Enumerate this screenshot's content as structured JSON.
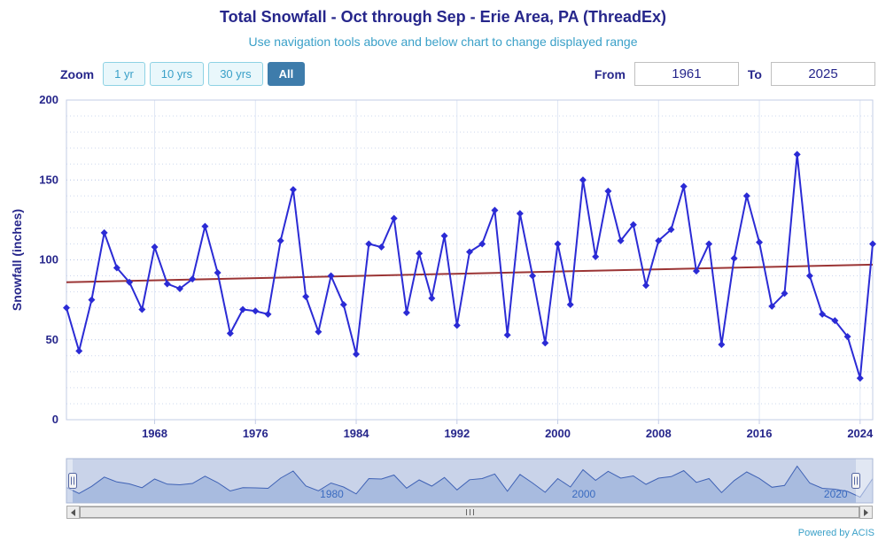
{
  "chart_data": {
    "type": "line",
    "title": "Total Snowfall - Oct through Sep - Erie Area, PA (ThreadEx)",
    "subtitle": "Use navigation tools above and below chart to change displayed range",
    "xlabel": "",
    "ylabel": "Snowfall (inches)",
    "xlim": [
      1961,
      2025
    ],
    "ylim": [
      0,
      200
    ],
    "x_ticks": [
      1968,
      1976,
      1984,
      1992,
      2000,
      2008,
      2016,
      2024
    ],
    "y_ticks": [
      0,
      50,
      100,
      150,
      200
    ],
    "minor_grid_step": 10,
    "grid": true,
    "legend": "none",
    "x_start": 1961,
    "x_end": 2025,
    "series": [
      {
        "name": "Seasonal total snowfall",
        "type": "line",
        "marker": "diamond",
        "color": "#2b2bd5",
        "values": [
          70,
          43,
          75,
          117,
          95,
          86,
          69,
          108,
          85,
          82,
          88,
          121,
          92,
          54,
          69,
          68,
          66,
          112,
          144,
          77,
          55,
          90,
          72,
          41,
          110,
          108,
          126,
          67,
          104,
          76,
          115,
          59,
          105,
          110,
          131,
          53,
          129,
          90,
          48,
          110,
          72,
          150,
          102,
          143,
          112,
          122,
          84,
          112,
          119,
          146,
          93,
          110,
          47,
          101,
          140,
          111,
          71,
          79,
          166,
          90,
          66,
          62,
          52,
          26,
          110
        ]
      },
      {
        "name": "Trend line",
        "type": "line",
        "marker": "none",
        "color": "#9b3535",
        "x": [
          1961,
          2025
        ],
        "values": [
          86,
          97
        ]
      }
    ],
    "navigator": {
      "labels": [
        1980,
        2000,
        2020
      ],
      "selected_range": [
        1961,
        2025
      ]
    }
  },
  "controls": {
    "zoom_label": "Zoom",
    "zoom_buttons": [
      {
        "label": "1 yr",
        "selected": false
      },
      {
        "label": "10 yrs",
        "selected": false
      },
      {
        "label": "30 yrs",
        "selected": false
      },
      {
        "label": "All",
        "selected": true
      }
    ],
    "from_label": "From",
    "from_value": "1961",
    "to_label": "To",
    "to_value": "2025"
  },
  "footer": {
    "powered_by": "Powered by ACIS"
  },
  "icons": {
    "scrollbar_left_arrow": "left-triangle",
    "scrollbar_right_arrow": "right-triangle",
    "scrollbar_grip": "vertical-bars",
    "navigator_handle": "grip-bars"
  },
  "colors": {
    "title_text": "#26268b",
    "accent_blue": "#3aa0c8",
    "button_selected_bg": "#3e7cab",
    "series_blue": "#2b2bd5",
    "trend_red": "#9b3535",
    "grid_major": "#b6c4e4",
    "grid_minor": "#cdd8ee",
    "plot_border": "#c3cce6",
    "navigator_bg": "#c9d3e9",
    "navigator_area_fill": "#a4b8de",
    "navigator_area_line": "#3f62b5",
    "navigator_label": "#3a6bc0"
  }
}
